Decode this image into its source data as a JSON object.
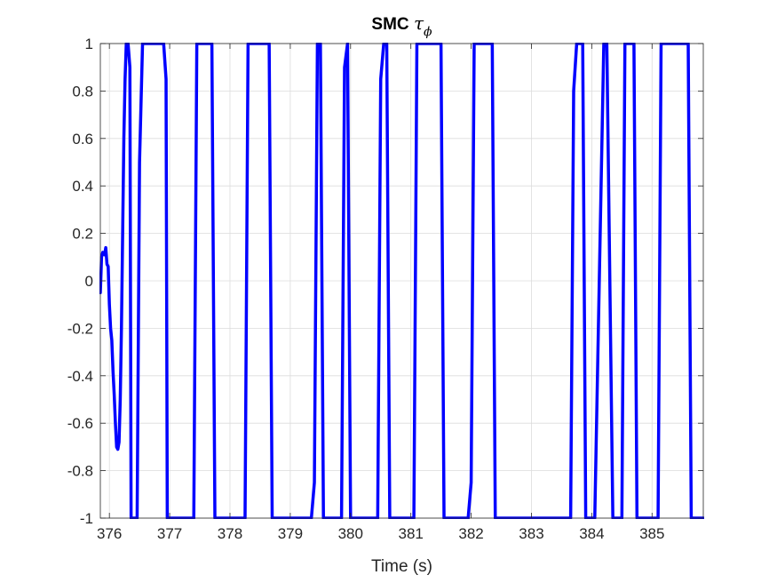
{
  "chart_data": {
    "type": "line",
    "title": "SMC",
    "title_symbol": "τ",
    "title_subscript": "ϕ",
    "xlabel": "Time (s)",
    "ylabel": "",
    "xlim": [
      375.85,
      385.85
    ],
    "ylim": [
      -1,
      1
    ],
    "xticks": [
      376,
      377,
      378,
      379,
      380,
      381,
      382,
      383,
      384,
      385
    ],
    "xtick_labels": [
      "376",
      "377",
      "378",
      "379",
      "380",
      "381",
      "382",
      "383",
      "384",
      "385"
    ],
    "yticks": [
      -1,
      -0.8,
      -0.6,
      -0.4,
      -0.2,
      0,
      0.2,
      0.4,
      0.6,
      0.8,
      1
    ],
    "ytick_labels": [
      "-1",
      "-0.8",
      "-0.6",
      "-0.4",
      "-0.2",
      "0",
      "0.2",
      "0.4",
      "0.6",
      "0.8",
      "1"
    ],
    "grid": true,
    "box": true,
    "series": [
      {
        "color": "#0000ff",
        "x": [
          375.85,
          375.87,
          375.89,
          375.92,
          375.94,
          375.96,
          375.98,
          376.0,
          376.02,
          376.04,
          376.06,
          376.08,
          376.1,
          376.12,
          376.14,
          376.16,
          376.18,
          376.2,
          376.22,
          376.24,
          376.26,
          376.28,
          376.31,
          376.34,
          376.36,
          376.38,
          376.4,
          376.42,
          376.46,
          376.5,
          376.55,
          376.6,
          376.62,
          376.66,
          376.7,
          376.9,
          376.94,
          376.96,
          376.98,
          377.0,
          377.05,
          377.4,
          377.45,
          377.5,
          377.7,
          377.75,
          377.8,
          378.1,
          378.25,
          378.3,
          378.35,
          378.65,
          378.7,
          378.75,
          379.35,
          379.4,
          379.45,
          379.5,
          379.55,
          379.6,
          379.65,
          379.85,
          379.9,
          379.95,
          380.0,
          380.45,
          380.5,
          380.55,
          380.6,
          380.65,
          381.0,
          381.05,
          381.1,
          381.25,
          381.35,
          381.4,
          381.45,
          381.5,
          381.55,
          381.9,
          381.95,
          382.0,
          382.05,
          382.3,
          382.35,
          382.4,
          382.45,
          383.65,
          383.7,
          383.75,
          383.8,
          383.85,
          383.9,
          384.0,
          384.05,
          384.2,
          384.25,
          384.35,
          384.4,
          384.5,
          384.55,
          384.7,
          384.75,
          384.8,
          384.85,
          385.1,
          385.15,
          385.25,
          385.3,
          385.6,
          385.65,
          385.7,
          385.75,
          385.85
        ],
        "y": [
          -0.05,
          0.1,
          0.12,
          0.11,
          0.14,
          0.07,
          0.06,
          -0.1,
          -0.2,
          -0.25,
          -0.38,
          -0.48,
          -0.6,
          -0.7,
          -0.71,
          -0.68,
          -0.5,
          -0.2,
          0.2,
          0.6,
          0.85,
          1.0,
          1.0,
          0.9,
          -1.0,
          -1.0,
          -1.0,
          -1.0,
          -1.0,
          0.5,
          1.0,
          1.0,
          1.0,
          1.0,
          1.0,
          1.0,
          0.85,
          -1.0,
          -1.0,
          -1.0,
          -1.0,
          -1.0,
          1.0,
          1.0,
          1.0,
          -1.0,
          -1.0,
          -1.0,
          -1.0,
          1.0,
          1.0,
          1.0,
          -1.0,
          -1.0,
          -1.0,
          -0.85,
          1.0,
          1.0,
          -1.0,
          -1.0,
          -1.0,
          -1.0,
          0.9,
          1.0,
          -1.0,
          -1.0,
          0.85,
          1.0,
          1.0,
          -1.0,
          -1.0,
          -1.0,
          1.0,
          1.0,
          1.0,
          1.0,
          1.0,
          1.0,
          -1.0,
          -1.0,
          -1.0,
          -0.85,
          1.0,
          1.0,
          1.0,
          -1.0,
          -1.0,
          -1.0,
          0.8,
          1.0,
          1.0,
          1.0,
          -1.0,
          -1.0,
          -1.0,
          1.0,
          1.0,
          -1.0,
          -1.0,
          -1.0,
          1.0,
          1.0,
          -1.0,
          -1.0,
          -1.0,
          -1.0,
          1.0,
          1.0,
          1.0,
          1.0,
          -1.0,
          -1.0,
          -1.0,
          -1.0
        ]
      }
    ]
  }
}
